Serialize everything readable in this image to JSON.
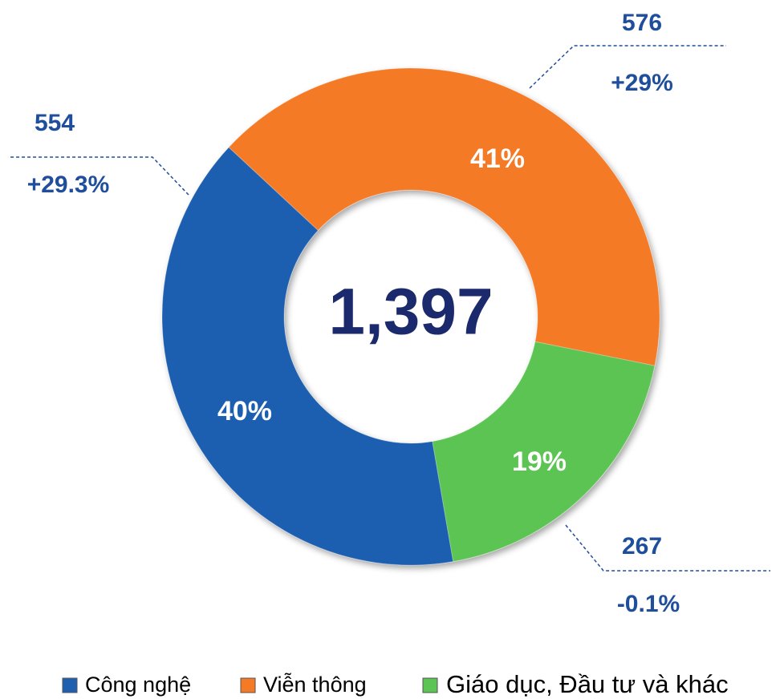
{
  "chart_data": {
    "type": "donut",
    "categories": [
      "Công nghệ",
      "Viễn thông",
      "Giáo dục, Đầu tư và khác"
    ],
    "values": [
      554,
      576,
      267
    ],
    "colors": [
      "#1f5fb0",
      "#f47a26",
      "#5cc452"
    ],
    "shares": [
      40,
      41,
      19
    ],
    "share_labels": [
      "40%",
      "41%",
      "19%"
    ],
    "growth": [
      29.3,
      29,
      -0.1
    ],
    "growth_labels": [
      "+29.3%",
      "+29%",
      "-0.1%"
    ],
    "total": 1397,
    "total_label": "1,397"
  }
}
